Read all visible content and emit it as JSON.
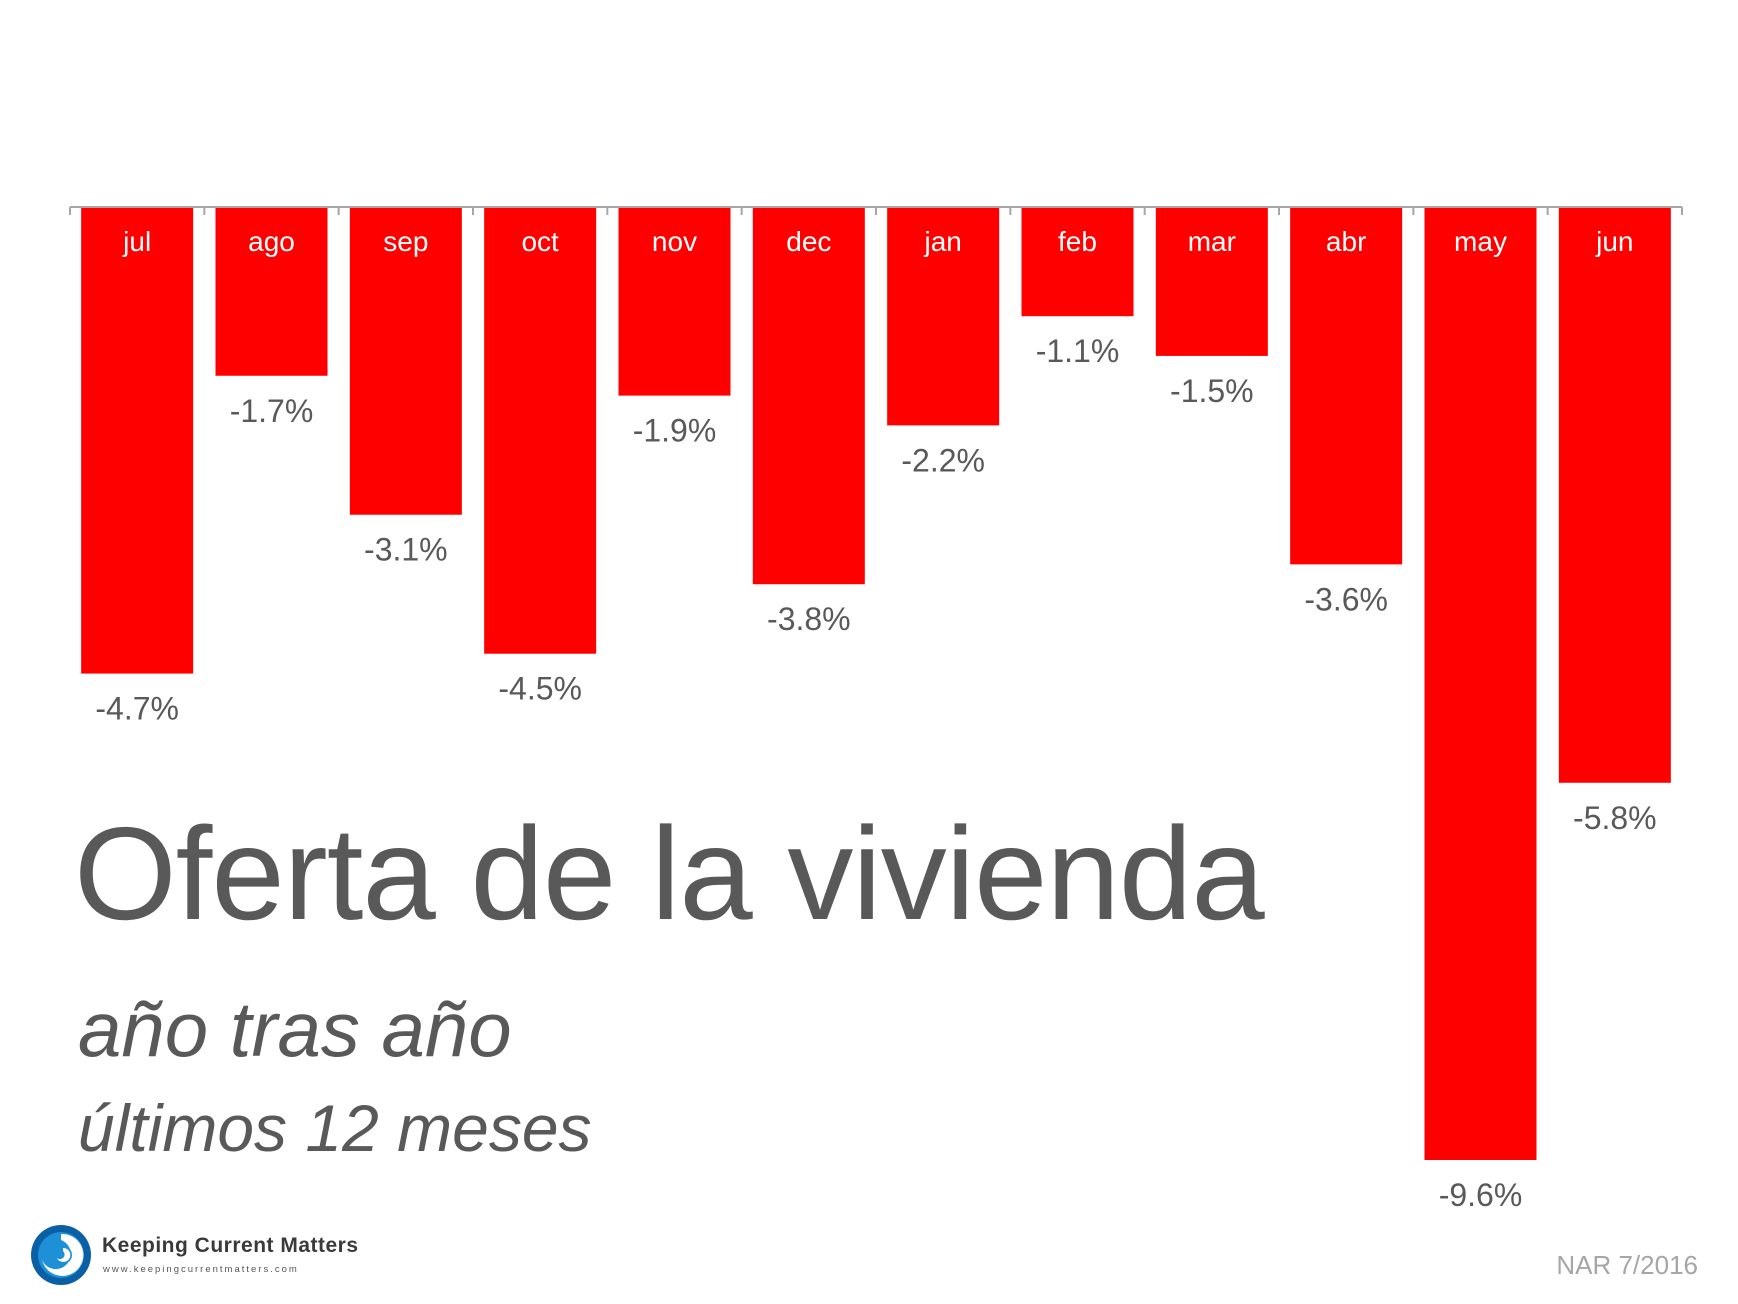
{
  "chart_data": {
    "type": "bar",
    "categories": [
      "jul",
      "ago",
      "sep",
      "oct",
      "nov",
      "dec",
      "jan",
      "feb",
      "mar",
      "abr",
      "may",
      "jun"
    ],
    "values": [
      -4.7,
      -1.7,
      -3.1,
      -4.5,
      -1.9,
      -3.8,
      -2.2,
      -1.1,
      -1.5,
      -3.6,
      -9.6,
      -5.8
    ],
    "value_labels": [
      "-4.7%",
      "-1.7%",
      "-3.1%",
      "-4.5%",
      "-1.9%",
      "-3.8%",
      "-2.2%",
      "-1.1%",
      "-1.5%",
      "-3.6%",
      "-9.6%",
      "-5.8%"
    ],
    "title": "Oferta de la vivienda",
    "subtitle": "año tras año",
    "subtitle2": "últimos 12 meses",
    "xlabel": "",
    "ylabel": "",
    "ylim": [
      -9.6,
      0
    ],
    "grid": false,
    "bar_color": "#ff0000",
    "category_label_color": "#ffffff",
    "value_label_color": "#595959",
    "axis_color": "#a6a6a6"
  },
  "source": "NAR 7/2016",
  "logo": {
    "name": "Keeping Current Matters",
    "url": "www.keepingcurrentmatters.com",
    "icon": "swirl-logo-icon"
  }
}
